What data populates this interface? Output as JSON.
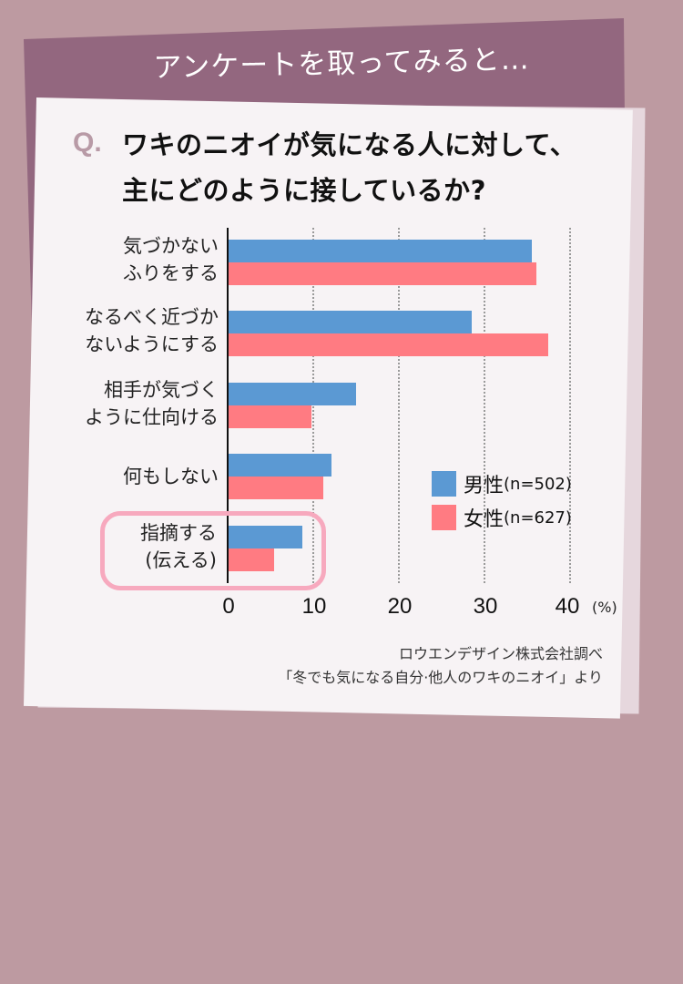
{
  "header": {
    "title": "アンケートを取ってみると…"
  },
  "question": {
    "mark": "Q.",
    "line1": "ワキのニオイが気になる人に対して、",
    "line2": "主にどのように接しているか?"
  },
  "legend": [
    {
      "label": "男性",
      "n": "(n=502)",
      "color": "#5b99d3"
    },
    {
      "label": "女性",
      "n": "(n=627)",
      "color": "#ff7b82"
    }
  ],
  "axis": {
    "ticks": [
      "0",
      "10",
      "20",
      "30",
      "40"
    ],
    "unit": "(%)"
  },
  "source": {
    "line1": "ロウエンデザイン株式会社調べ",
    "line2": "「冬でも気になる自分·他人のワキのニオイ」より"
  },
  "categories": [
    {
      "line1": "気づかない",
      "line2": "ふりをする"
    },
    {
      "line1": "なるべく近づか",
      "line2": "ないようにする"
    },
    {
      "line1": "相手が気づく",
      "line2": "ように仕向ける"
    },
    {
      "line1": "何もしない",
      "line2": ""
    },
    {
      "line1": "指摘する",
      "line2": "(伝える)"
    }
  ],
  "chart_data": {
    "type": "bar",
    "orientation": "horizontal",
    "title": "ワキのニオイが気になる人に対して、主にどのように接しているか?",
    "categories": [
      "気づかないふりをする",
      "なるべく近づかないようにする",
      "相手が気づくように仕向ける",
      "何もしない",
      "指摘する(伝える)"
    ],
    "series": [
      {
        "name": "男性(n=502)",
        "color": "#5b99d3",
        "values": [
          35.5,
          28.5,
          14.9,
          12.0,
          8.6
        ]
      },
      {
        "name": "女性(n=627)",
        "color": "#ff7b82",
        "values": [
          36.0,
          37.4,
          9.7,
          11.1,
          5.3
        ]
      }
    ],
    "xlabel": "(%)",
    "ylabel": "",
    "xlim": [
      0,
      40
    ],
    "xticks": [
      0,
      10,
      20,
      30,
      40
    ],
    "grid": "vertical dotted",
    "legend_position": "lower right inside",
    "highlighted_category": "指摘する(伝える)",
    "annotation": "ロウエンデザイン株式会社調べ「冬でも気になる自分·他人のワキのニオイ」より"
  }
}
